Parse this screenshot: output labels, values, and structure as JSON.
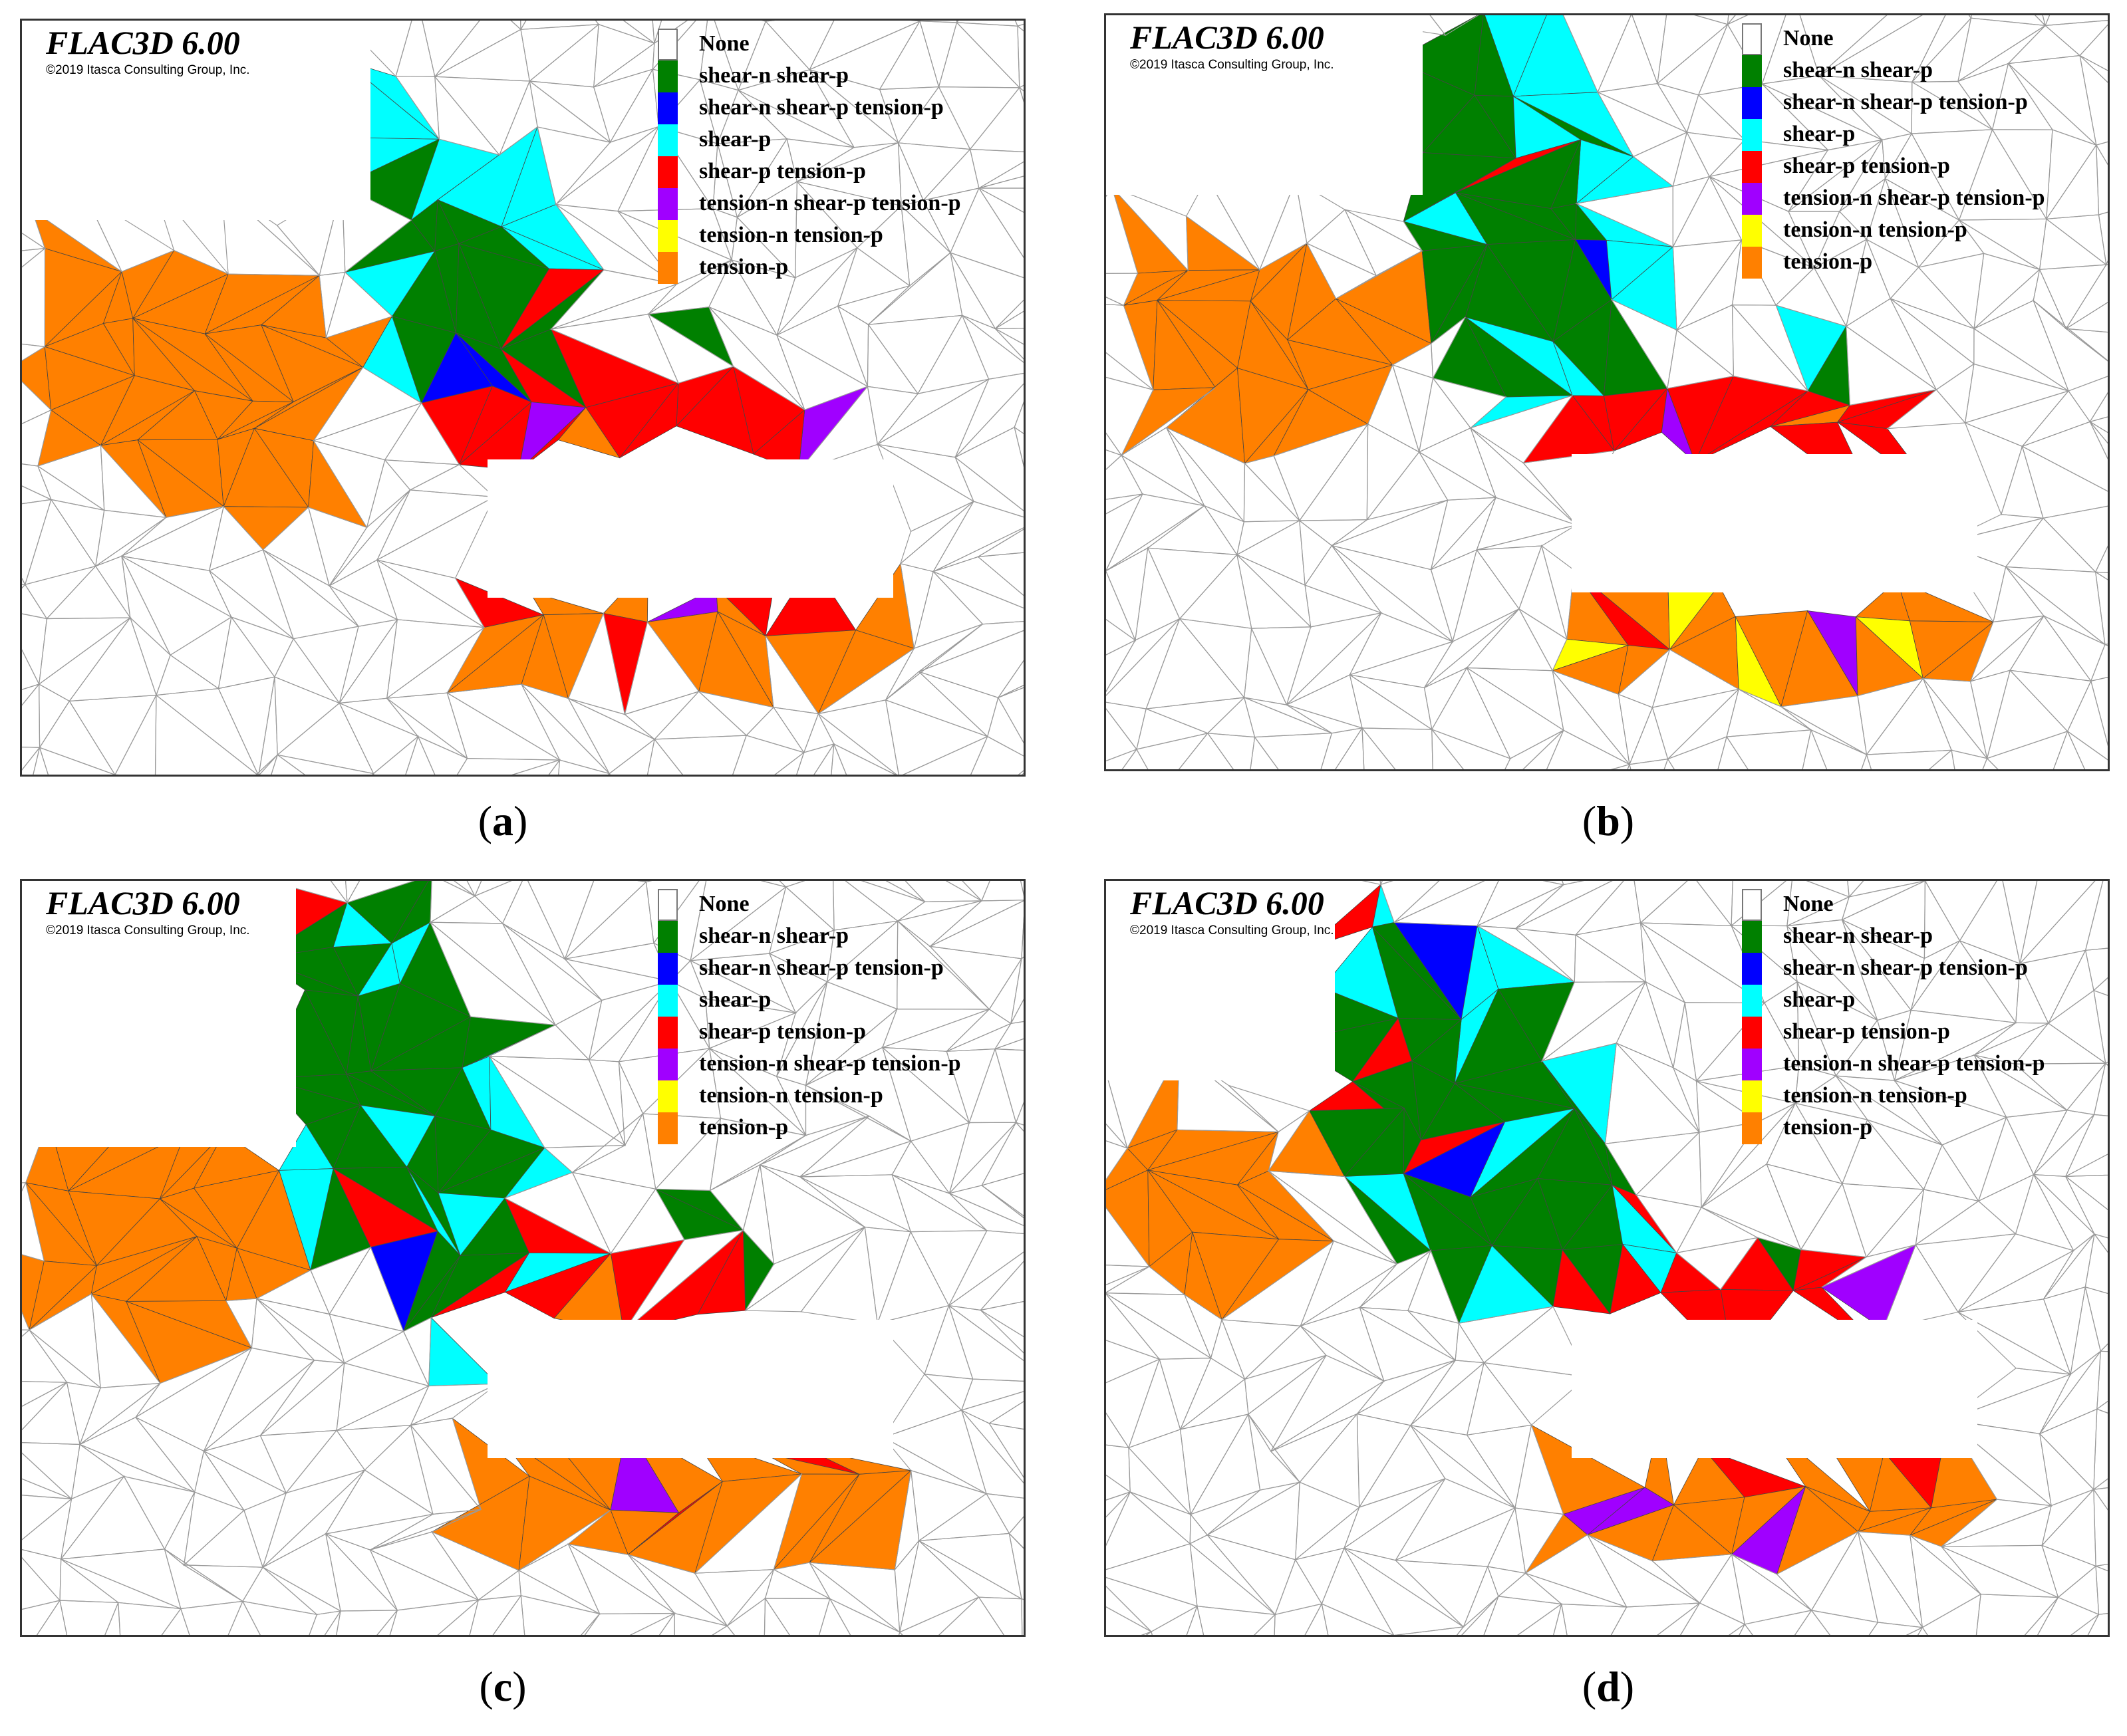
{
  "software_title": "FLAC3D 6.00",
  "copyright": "©2019 Itasca Consulting Group, Inc.",
  "legend": [
    {
      "label": "None",
      "color": "#ffffff"
    },
    {
      "label": "shear-n shear-p",
      "color": "#008000"
    },
    {
      "label": "shear-n shear-p tension-p",
      "color": "#0000ff"
    },
    {
      "label": "shear-p",
      "color": "#00ffff"
    },
    {
      "label": "shear-p tension-p",
      "color": "#ff0000"
    },
    {
      "label": "tension-n shear-p tension-p",
      "color": "#a000ff"
    },
    {
      "label": "tension-n tension-p",
      "color": "#ffff00"
    },
    {
      "label": "tension-p",
      "color": "#ff8000"
    }
  ],
  "panels": [
    {
      "id": "a",
      "caption_letter": "a"
    },
    {
      "id": "b",
      "caption_letter": "b"
    },
    {
      "id": "c",
      "caption_letter": "c"
    },
    {
      "id": "d",
      "caption_letter": "d"
    }
  ]
}
